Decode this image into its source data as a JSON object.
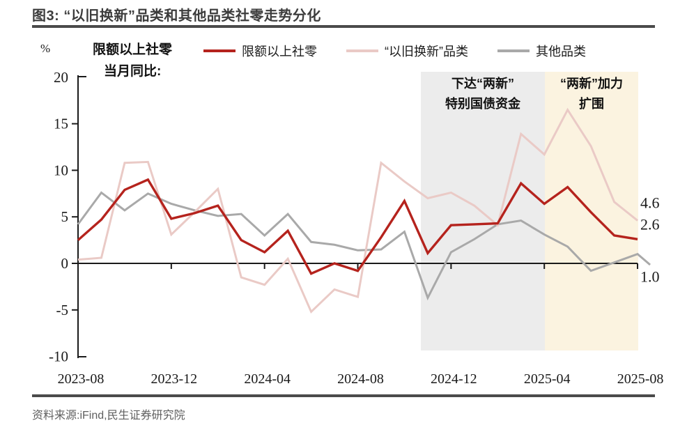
{
  "figure": {
    "title": "图3: “以旧换新”品类和其他品类社零走势分化",
    "source": "资料来源:iFind,民生证券研究院"
  },
  "axis_note": {
    "line1": "限额以上社零",
    "line2": "当月同比:",
    "unit": "%"
  },
  "legend": {
    "items": [
      "限额以上社零",
      "“以旧换新”品类",
      "其他品类"
    ]
  },
  "chart_data": {
    "type": "line",
    "x": [
      "2023-08",
      "2023-09",
      "2023-10",
      "2023-11",
      "2023-12",
      "2024-01",
      "2024-02",
      "2024-03",
      "2024-04",
      "2024-05",
      "2024-06",
      "2024-07",
      "2024-08",
      "2024-09",
      "2024-10",
      "2024-11",
      "2024-12",
      "2025-01",
      "2025-02",
      "2025-03",
      "2025-04",
      "2025-05",
      "2025-06",
      "2025-07",
      "2025-08"
    ],
    "x_tick_labels": [
      "2023-08",
      "2023-12",
      "2024-04",
      "2024-08",
      "2024-12",
      "2025-04",
      "2025-08"
    ],
    "ylabel": "%",
    "ylim": [
      -10,
      20
    ],
    "yticks": [
      20,
      15,
      10,
      5,
      0,
      -5,
      -10
    ],
    "grid": false,
    "legend_position": "top",
    "series": [
      {
        "name": "限额以上社零",
        "color": "#b5231d",
        "values": [
          2.5,
          4.7,
          7.9,
          9.0,
          4.8,
          5.4,
          6.2,
          2.5,
          1.2,
          3.5,
          -1.1,
          0.0,
          -0.8,
          2.8,
          6.7,
          1.1,
          4.1,
          4.2,
          4.3,
          8.6,
          6.4,
          8.2,
          5.5,
          3.0,
          2.6
        ],
        "end_label": "2.6"
      },
      {
        "name": "“以旧换新”品类",
        "color": "#eacac6",
        "values": [
          0.4,
          0.6,
          10.8,
          10.9,
          3.1,
          5.5,
          8.0,
          -1.5,
          -2.3,
          0.5,
          -5.2,
          -2.8,
          -3.6,
          10.8,
          8.8,
          7.0,
          7.6,
          6.2,
          4.1,
          13.9,
          11.7,
          16.5,
          12.6,
          6.6,
          4.6
        ],
        "end_label": "4.6"
      },
      {
        "name": "其他品类",
        "color": "#a9a9a9",
        "values": [
          4.2,
          7.6,
          5.7,
          7.5,
          6.4,
          5.7,
          5.1,
          5.3,
          3.0,
          5.3,
          2.3,
          2.0,
          1.4,
          1.5,
          3.4,
          -3.7,
          1.2,
          2.6,
          4.2,
          4.6,
          3.1,
          1.8,
          -0.8,
          0.1,
          1.0
        ],
        "end_label": "1.0",
        "tail_value": -0.15
      }
    ],
    "regions": [
      {
        "label_line1": "下达“两新”",
        "label_line2": "特别国债资金",
        "start": "2024-10",
        "end": "2025-04",
        "fill": "#ececec"
      },
      {
        "label_line1": "“两新”加力",
        "label_line2": "扩围",
        "start": "2025-04",
        "end": "2025-08",
        "fill": "#fbf3e0"
      }
    ]
  }
}
